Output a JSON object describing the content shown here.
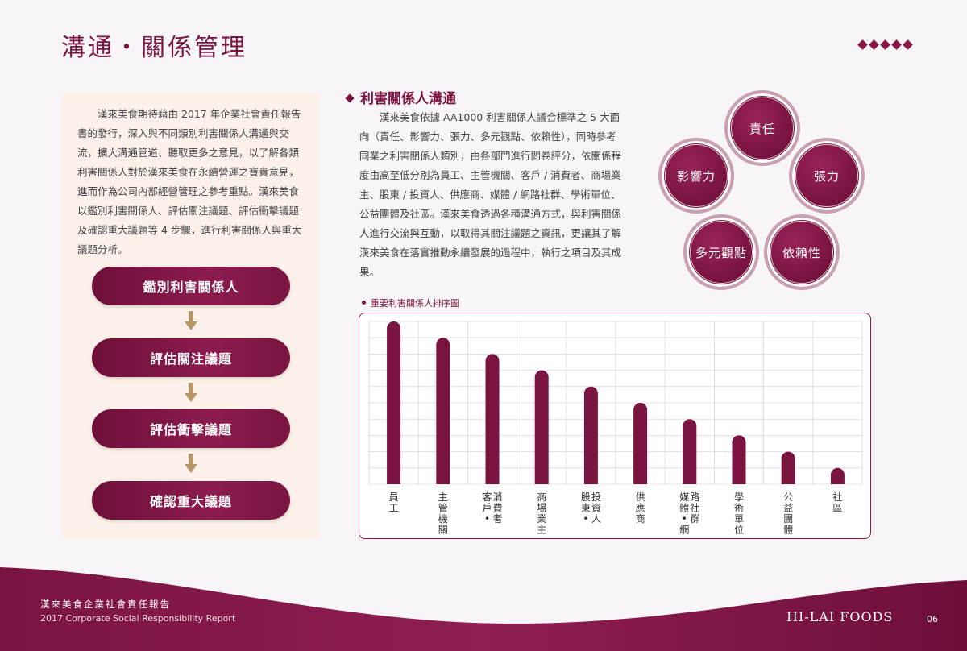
{
  "header": {
    "title": "溝通・關係管理"
  },
  "intro": {
    "text": "漢來美食期待藉由 2017 年企業社會責任報告書的發行，深入與不同類別利害關係人溝通與交流，擴大溝通管道、聽取更多之意見，以了解各類利害關係人對於漢來美食在永續營運之寶貴意見，進而作為公司內部經營管理之參考重點。漢來美食以鑑別利害關係人、評估關注議題、評估衝擊議題及確認重大議題等 4 步驟，進行利害關係人與重大議題分析。"
  },
  "steps": [
    {
      "label": "鑑別利害關係人"
    },
    {
      "label": "評估關注議題"
    },
    {
      "label": "評估衝擊議題"
    },
    {
      "label": "確認重大議題"
    }
  ],
  "section": {
    "heading": "利害關係人溝通",
    "text": "漢來美食依據 AA1000 利害關係人議合標準之 5 大面向（責任、影響力、張力、多元觀點、依賴性），同時參考同業之利害關係人類別，由各部門進行問卷評分，依關係程度由高至低分別為員工、主管機關、客戶 / 消費者、商場業主、股東 / 投資人、供應商、媒體 / 網路社群、學術單位、公益團體及社區。漢來美食透過各種溝通方式，與利害關係人進行交流與互動，以取得其關注議題之資訊，更讓其了解漢來美食在落實推動永續發展的過程中，執行之項目及其成果。"
  },
  "principles": {
    "responsibility": "責任",
    "influence": "影響力",
    "tension": "張力",
    "perspectives": "多元觀點",
    "dependency": "依賴性"
  },
  "chart_label": "重要利害關係人排序圖",
  "chart_data": {
    "type": "bar",
    "title": "重要利害關係人排序圖",
    "categories": [
      [
        "員",
        "工"
      ],
      [
        "主",
        "管",
        "機",
        "關"
      ],
      [
        "客",
        "戶",
        "•",
        "消",
        "費",
        "者"
      ],
      [
        "商",
        "場",
        "業",
        "主"
      ],
      [
        "股",
        "東",
        "•",
        "投",
        "資",
        "人"
      ],
      [
        "供",
        "應",
        "商"
      ],
      [
        "媒",
        "體",
        "•",
        "網",
        "路",
        "社",
        "群"
      ],
      [
        "學",
        "術",
        "單",
        "位"
      ],
      [
        "公",
        "益",
        "團",
        "體"
      ],
      [
        "社",
        "區"
      ]
    ],
    "values": [
      10,
      9,
      8,
      7,
      6,
      5,
      4,
      3,
      2,
      1
    ],
    "ylim": [
      0,
      10
    ],
    "grid": true,
    "colors": {
      "bar": "#7a1440",
      "grid": "#dcd6da"
    }
  },
  "footer": {
    "cn": "漢來美食企業社會責任報告",
    "en": "2017 Corporate Social Responsibility Report",
    "brand": "HI-LAI FOODS",
    "page": "06"
  },
  "colors": {
    "accent": "#7a1440",
    "gold": "#b8956a",
    "panel": "#fbf1ea"
  }
}
